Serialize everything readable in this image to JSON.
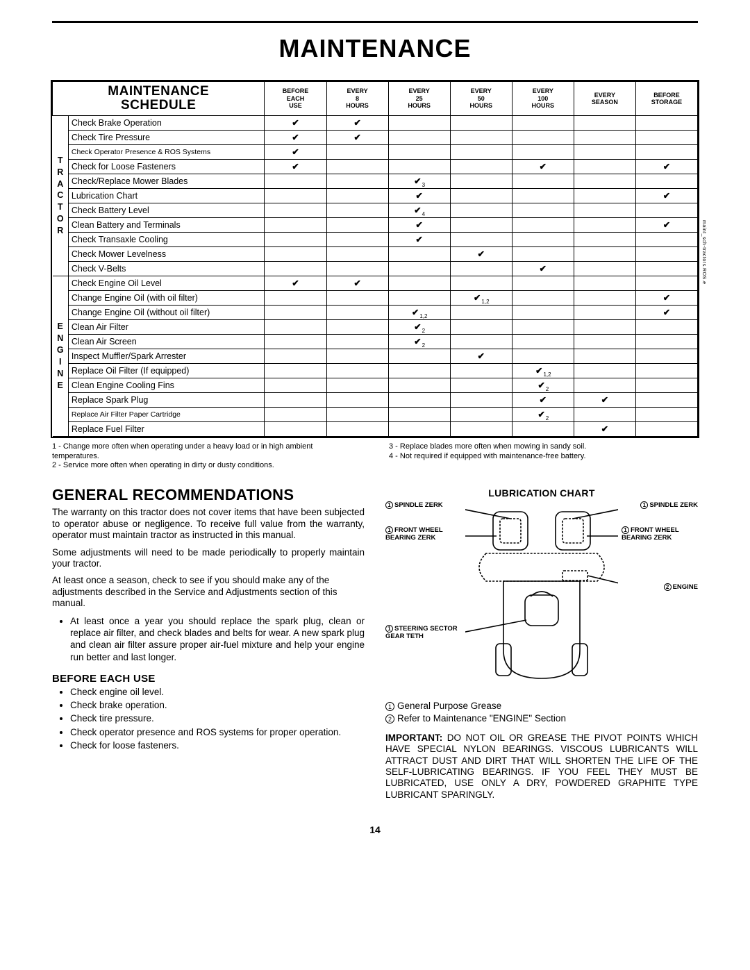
{
  "page": {
    "title": "MAINTENANCE",
    "number": "14",
    "side_code": "maint_sch-tractors.ROS.e"
  },
  "schedule": {
    "title_l1": "MAINTENANCE",
    "title_l2": "SCHEDULE",
    "columns": [
      {
        "l1": "BEFORE",
        "l2": "EACH",
        "l3": "USE"
      },
      {
        "l1": "EVERY",
        "l2": "8",
        "l3": "HOURS"
      },
      {
        "l1": "EVERY",
        "l2": "25",
        "l3": "HOURS"
      },
      {
        "l1": "EVERY",
        "l2": "50",
        "l3": "HOURS"
      },
      {
        "l1": "EVERY",
        "l2": "100",
        "l3": "HOURS"
      },
      {
        "l1": "EVERY",
        "l2": "SEASON",
        "l3": ""
      },
      {
        "l1": "BEFORE",
        "l2": "STORAGE",
        "l3": ""
      }
    ],
    "groups": [
      {
        "letters": "TRACTOR",
        "tasks": [
          {
            "name": "Check Brake Operation",
            "marks": {
              "0": "",
              "1": ""
            }
          },
          {
            "name": "Check Tire Pressure",
            "marks": {
              "0": "",
              "1": ""
            }
          },
          {
            "name": "Check Operator Presence & ROS Systems",
            "small": true,
            "marks": {
              "0": ""
            }
          },
          {
            "name": "Check for Loose Fasteners",
            "marks": {
              "0": "",
              "4": "",
              "6": ""
            }
          },
          {
            "name": "Check/Replace Mower Blades",
            "marks": {
              "2": "3"
            }
          },
          {
            "name": "Lubrication Chart",
            "marks": {
              "2": "",
              "6": ""
            }
          },
          {
            "name": "Check Battery Level",
            "marks": {
              "2": "4"
            }
          },
          {
            "name": "Clean Battery and Terminals",
            "marks": {
              "2": "",
              "6": ""
            }
          },
          {
            "name": "Check Transaxle Cooling",
            "marks": {
              "2": ""
            }
          },
          {
            "name": "Check Mower Levelness",
            "marks": {
              "3": ""
            }
          },
          {
            "name": "Check V-Belts",
            "marks": {
              "4": ""
            }
          }
        ]
      },
      {
        "letters": "ENGINE",
        "tasks": [
          {
            "name": "Check Engine Oil Level",
            "marks": {
              "0": "",
              "1": ""
            }
          },
          {
            "name": "Change Engine Oil (with oil filter)",
            "marks": {
              "3": "1,2",
              "6": ""
            }
          },
          {
            "name": "Change Engine Oil (without oil filter)",
            "marks": {
              "2": "1,2",
              "6": ""
            }
          },
          {
            "name": "Clean Air Filter",
            "marks": {
              "2": "2"
            }
          },
          {
            "name": "Clean Air Screen",
            "marks": {
              "2": "2"
            }
          },
          {
            "name": "Inspect Muffler/Spark Arrester",
            "marks": {
              "3": ""
            }
          },
          {
            "name": "Replace Oil Filter (If equipped)",
            "marks": {
              "4": "1,2"
            }
          },
          {
            "name": "Clean Engine Cooling Fins",
            "marks": {
              "4": "2"
            }
          },
          {
            "name": "Replace Spark Plug",
            "marks": {
              "4": "",
              "5": ""
            }
          },
          {
            "name": "Replace Air Filter Paper Cartridge",
            "small": true,
            "marks": {
              "4": "2"
            }
          },
          {
            "name": "Replace Fuel Filter",
            "marks": {
              "5": ""
            }
          }
        ]
      }
    ],
    "footnotes": {
      "left": [
        "1 - Change more often when operating under a heavy load or in high ambient temperatures.",
        "2 - Service more often when operating in dirty or dusty conditions."
      ],
      "right": [
        "3 - Replace blades more often when mowing in sandy soil.",
        "4 - Not required if equipped with maintenance-free battery."
      ]
    }
  },
  "general": {
    "heading": "GENERAL RECOMMENDATIONS",
    "para1": "The warranty on this tractor does not cover items that have been subjected to operator abuse or negligence. To receive full value from the warranty, operator must maintain tractor as instructed in this manual.",
    "para2": "Some adjustments will need to be made periodically to properly maintain your tractor.",
    "para3": "At least once a season, check to see if you should make any of the adjustments described in the Service and Adjustments section of this manual.",
    "bullet1": "At least once a year you should replace the spark plug, clean or replace air filter, and check blades and belts for wear.  A new spark plug and clean air filter assure proper air-fuel mixture and help your engine run better and last longer.",
    "before_heading": "BEFORE EACH USE",
    "before_items": [
      "Check engine oil level.",
      "Check brake operation.",
      "Check tire pressure.",
      "Check operator presence and ROS systems for proper operation.",
      "Check for loose fasteners."
    ]
  },
  "lubrication": {
    "title": "LUBRICATION CHART",
    "labels": {
      "spindle_l": "SPINDLE ZERK",
      "spindle_r": "SPINDLE ZERK",
      "front_wheel_l": "FRONT WHEEL BEARING ZERK",
      "front_wheel_r": "FRONT WHEEL BEARING ZERK",
      "engine": "ENGINE",
      "steering": "STEERING SECTOR GEAR TETH"
    },
    "legend1": "General Purpose Grease",
    "legend2": "Refer to Maintenance \"ENGINE\" Section",
    "important_label": "IMPORTANT:",
    "important": "DO NOT OIL OR GREASE THE PIVOT POINTS WHICH HAVE SPECIAL NYLON BEARINGS.  VISCOUS LUBRICANTS WILL ATTRACT DUST AND DIRT THAT WILL SHORTEN THE LIFE OF THE SELF-LUBRICATING BEARINGS. IF YOU FEEL THEY MUST BE LUBRICATED, USE ONLY A DRY, POWDERED GRAPHITE TYPE LUBRICANT SPARINGLY."
  }
}
